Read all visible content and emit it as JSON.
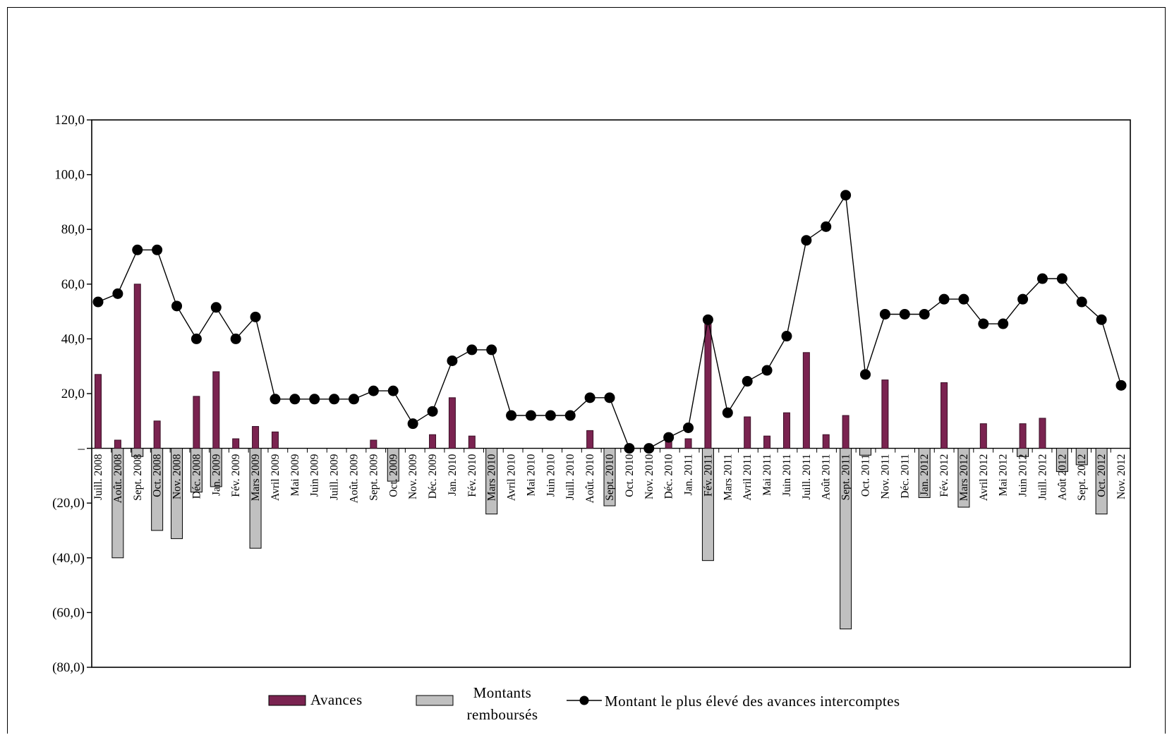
{
  "chart_data": {
    "type": "bar",
    "title": "",
    "xlabel": "",
    "ylabel": "",
    "ylim": [
      -80,
      120
    ],
    "yticks": [
      120,
      100,
      80,
      60,
      40,
      20,
      0,
      -20,
      -40,
      -60,
      -80
    ],
    "ytick_labels": [
      "120,0",
      "100,0",
      "80,0",
      "60,0",
      "40,0",
      "20,0",
      "–",
      "(20,0)",
      "(40,0)",
      "(60,0)",
      "(80,0)"
    ],
    "grid": false,
    "legend_position": "bottom",
    "categories": [
      "Juill. 2008",
      "Août. 2008",
      "Sept. 2008",
      "Oct. 2008",
      "Nov. 2008",
      "Déc. 2008",
      "Jan. 2009",
      "Fév. 2009",
      "Mars 2009",
      "Avril 2009",
      "Mai 2009",
      "Juin 2009",
      "Juill. 2009",
      "Août. 2009",
      "Sept. 2009",
      "Oct. 2009",
      "Nov. 2009",
      "Déc. 2009",
      "Jan. 2010",
      "Fév. 2010",
      "Mars 2010",
      "Avril 2010",
      "Mai 2010",
      "Juin 2010",
      "Juill. 2010",
      "Août. 2010",
      "Sept. 2010",
      "Oct. 2010",
      "Nov. 2010",
      "Déc. 2010",
      "Jan. 2011",
      "Fév. 2011",
      "Mars 2011",
      "Avril 2011",
      "Mai 2011",
      "Juin 2011",
      "Juill. 2011",
      "Août 2011",
      "Sept. 2011",
      "Oct. 2011",
      "Nov. 2011",
      "Déc. 2011",
      "Jan. 2012",
      "Fév. 2012",
      "Mars 2012",
      "Avril 2012",
      "Mai 2012",
      "Juin 2012",
      "Juill. 2012",
      "Août 2012",
      "Sept. 2012",
      "Oct. 2012",
      "Nov. 2012"
    ],
    "series": [
      {
        "name": "Avances",
        "kind": "bar",
        "color": "#7a2350",
        "values": [
          27,
          3,
          60,
          10,
          0,
          19,
          28,
          3.5,
          8,
          6,
          0,
          0,
          0,
          0,
          3,
          0,
          0,
          5,
          18.5,
          4.5,
          0,
          0,
          0,
          0,
          0,
          6.5,
          0,
          0,
          0,
          4,
          3.5,
          47,
          0,
          11.5,
          4.5,
          13,
          35,
          5,
          12,
          0,
          25,
          0,
          0,
          24,
          0,
          9,
          0,
          9,
          11,
          0,
          0,
          0,
          0
        ]
      },
      {
        "name": "Montants remboursés",
        "kind": "bar",
        "color": "#c0c0c0",
        "values": [
          0,
          -40,
          -3,
          -30,
          -33,
          -16,
          -14,
          0,
          -36.5,
          0,
          0,
          0,
          0,
          0,
          0,
          -12,
          0,
          0,
          0,
          0,
          -24,
          0,
          0,
          0,
          0,
          0,
          -21,
          0,
          0,
          0,
          0,
          -41,
          0,
          0,
          0,
          0,
          0,
          0,
          -66,
          -2.5,
          0,
          0,
          -18,
          0,
          -21.5,
          0,
          0,
          -3,
          0,
          -8.5,
          -6,
          -24,
          0
        ]
      },
      {
        "name": "Montant le plus élevé des avances intercomptes",
        "kind": "line",
        "color": "#000000",
        "values": [
          53.5,
          56.5,
          72.5,
          72.5,
          52,
          40,
          51.5,
          40,
          48,
          18,
          18,
          18,
          18,
          18,
          21,
          21,
          9,
          13.5,
          32,
          36,
          36,
          12,
          12,
          12,
          12,
          18.5,
          18.5,
          0,
          0,
          4,
          7.5,
          47,
          13,
          24.5,
          28.5,
          41,
          76,
          81,
          92.5,
          27,
          49,
          49,
          49,
          54.5,
          54.5,
          45.5,
          45.5,
          54.5,
          62,
          62,
          53.5,
          47,
          23
        ]
      }
    ]
  },
  "legend": {
    "avances": "Avances",
    "rembourses_line1": "Montants",
    "rembourses_line2": "remboursés",
    "montant": "Montant le plus élevé des avances intercomptes"
  }
}
